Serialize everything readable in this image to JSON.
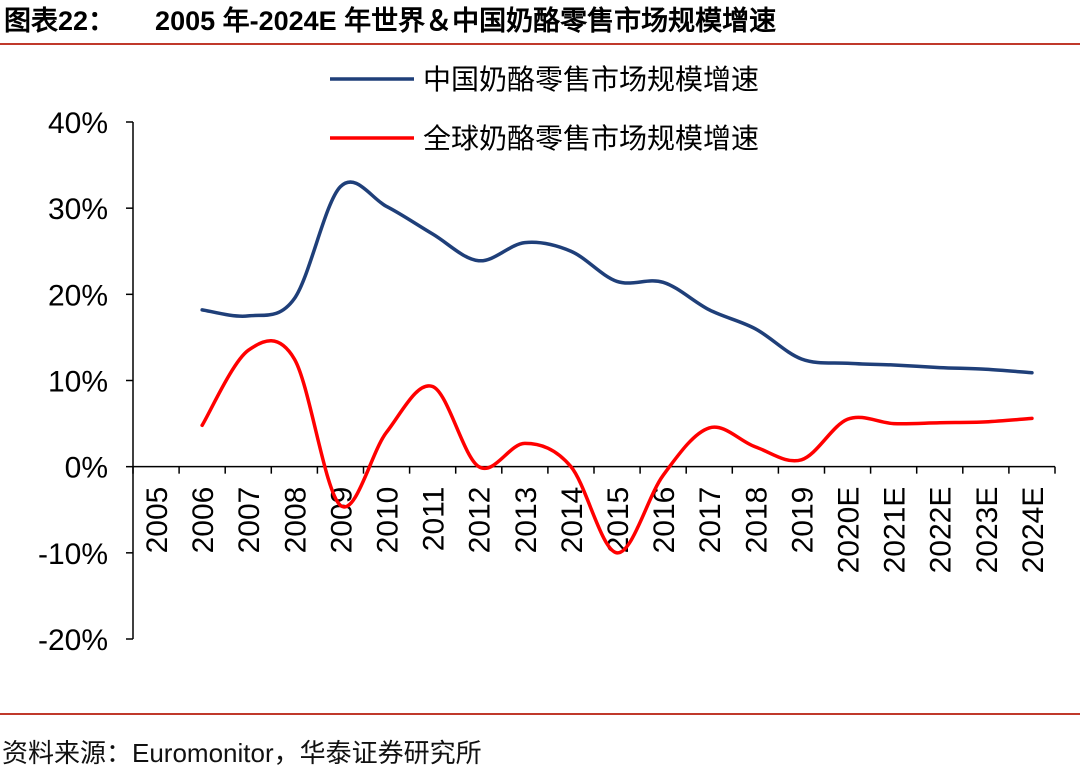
{
  "figure": {
    "number": "图表22：",
    "title": "2005 年-2024E 年世界＆中国奶酪零售市场规模增速",
    "source": "资料来源：Euromonitor，华泰证券研究所"
  },
  "colors": {
    "china": "#1f3f79",
    "global": "#ff0000",
    "accent": "#c0392b"
  },
  "chart_data": {
    "type": "line",
    "categories": [
      "2005",
      "2006",
      "2007",
      "2008",
      "2009",
      "2010",
      "2011",
      "2012",
      "2013",
      "2014",
      "2015",
      "2016",
      "2017",
      "2018",
      "2019",
      "2020E",
      "2021E",
      "2022E",
      "2023E",
      "2024E"
    ],
    "ylim": [
      -20,
      40
    ],
    "yticks": [
      -20,
      -10,
      0,
      10,
      20,
      30,
      40
    ],
    "ytick_labels": [
      "-20%",
      "-10%",
      "0%",
      "10%",
      "20%",
      "30%",
      "40%"
    ],
    "series": [
      {
        "name": "中国奶酪零售市场规模增速",
        "color": "#1f3f79",
        "values": [
          null,
          18.2,
          17.5,
          19.5,
          32.5,
          30.2,
          27.0,
          23.9,
          26.0,
          25.0,
          21.5,
          21.4,
          18.2,
          16.0,
          12.5,
          12.0,
          11.8,
          11.5,
          11.3,
          10.9
        ]
      },
      {
        "name": "全球奶酪零售市场规模增速",
        "color": "#ff0000",
        "values": [
          null,
          4.8,
          13.5,
          12.5,
          -4.5,
          4.0,
          9.3,
          0.0,
          2.7,
          0.0,
          -10.0,
          -1.0,
          4.5,
          2.3,
          0.8,
          5.5,
          5.0,
          5.1,
          5.2,
          5.6
        ]
      }
    ],
    "legend_position": "top-center"
  }
}
